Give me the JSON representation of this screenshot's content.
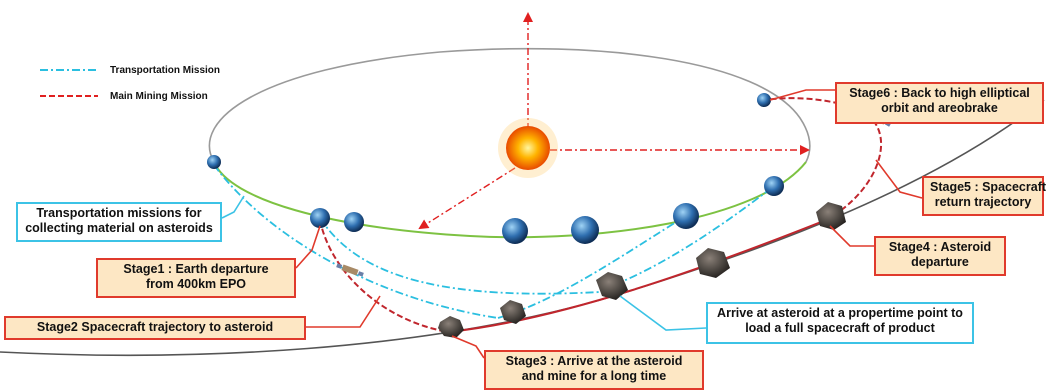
{
  "legend": [
    {
      "label": "Transportation Mission",
      "color": "#2bbfe0",
      "dash": "dashdot"
    },
    {
      "label": "Main Mining Mission",
      "color": "#e02020",
      "dash": "dash"
    }
  ],
  "colors": {
    "orbit_upper": "#9a9a9a",
    "orbit_lower": "#7dc242",
    "asteroid_orbit": "#555555",
    "mining_path": "#c0262d",
    "transport_path": "#2bbfe0",
    "sun_core": "#ff8a00",
    "earth": "#2f6fb0",
    "asteroid": "#4a4540"
  },
  "labels": {
    "stage6": {
      "line1": "Stage6 : Back to high elliptical",
      "line2": "orbit and areobrake"
    },
    "stage5": {
      "line1": "Stage5 : Spacecraft",
      "line2": "return trajectory"
    },
    "transport": {
      "line1": "Transportation missions for",
      "line2": "collecting material on asteroids"
    },
    "stage4": {
      "line1": "Stage4 : Asteroid",
      "line2": "departure"
    },
    "stage1": {
      "line1": "Stage1 : Earth departure",
      "line2": "from 400km EPO"
    },
    "arrive": {
      "line1": "Arrive at asteroid at a propertime point to",
      "line2": "load a full spacecraft of product"
    },
    "stage2": {
      "line1": "Stage2 Spacecraft trajectory to asteroid"
    },
    "stage3": {
      "line1": "Stage3 : Arrive at the asteroid",
      "line2": "and mine for a long time"
    }
  }
}
